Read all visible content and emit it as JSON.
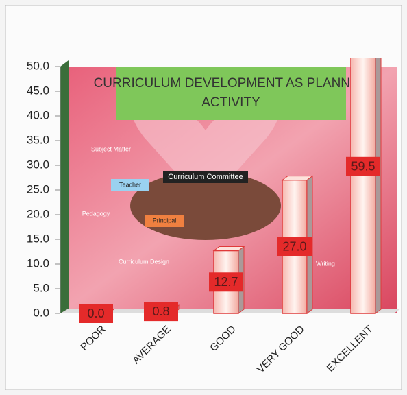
{
  "chart_data": {
    "type": "bar",
    "title": "CURRICULUM DEVELOPMENT AS PLANNED ACTIVITY",
    "categories": [
      "POOR",
      "AVERAGE",
      "GOOD",
      "VERY GOOD",
      "EXCELLENT"
    ],
    "values": [
      0,
      0.8,
      12.7,
      27,
      59.5
    ],
    "value_labels": [
      "0.0",
      "0.8",
      "12.7",
      "27.0",
      "59.5"
    ],
    "color": "#f9d6d3",
    "ylim": [
      0,
      50
    ],
    "yticks": [
      {
        "value": 0,
        "label": "0.0"
      },
      {
        "value": 5,
        "label": "5.0"
      },
      {
        "value": 10,
        "label": "10.0"
      },
      {
        "value": 15,
        "label": "15.0"
      },
      {
        "value": 20,
        "label": "20.0"
      },
      {
        "value": 25,
        "label": "25.0"
      },
      {
        "value": 30,
        "label": "30.0"
      },
      {
        "value": 35,
        "label": "35.0"
      },
      {
        "value": 40,
        "label": "40.0"
      },
      {
        "value": 45,
        "label": "45.0"
      },
      {
        "value": 50,
        "label": "50.0"
      }
    ],
    "annotations": [
      "Curriculum Committee",
      "Subject Matter",
      "Teacher",
      "Pedagogy",
      "Principal",
      "Curriculum Design",
      "Writing"
    ]
  }
}
